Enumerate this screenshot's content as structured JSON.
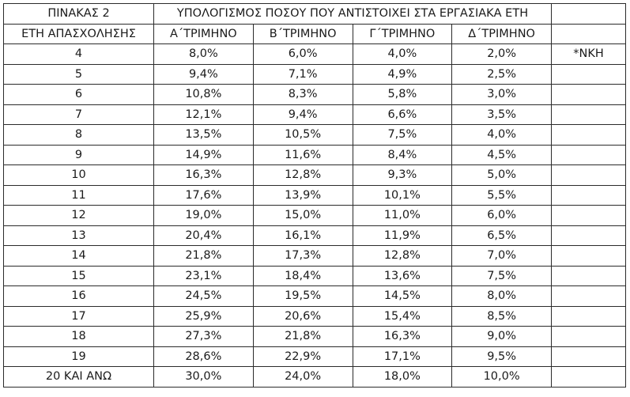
{
  "table": {
    "title_cell": "ΠΙΝΑΚΑΣ 2",
    "caption": "ΥΠΟΛΟΓΙΣΜΟΣ ΠΟΣΟΥ ΠΟΥ ΑΝΤΙΣΤΟΙΧΕΙ ΣΤΑ ΕΡΓΑΣΙΑΚΑ ΕΤΗ",
    "headers": [
      "ΕΤΗ ΑΠΑΣΧΟΛΗΣΗΣ",
      "Α΄ΤΡΙΜΗΝΟ",
      "Β΄ΤΡΙΜΗΝΟ",
      "Γ΄ΤΡΙΜΗΝΟ",
      "Δ΄ΤΡΙΜΗΝΟ",
      ""
    ],
    "note": "*ΝΚΗ",
    "rows": [
      [
        "4",
        "8,0%",
        "6,0%",
        "4,0%",
        "2,0%"
      ],
      [
        "5",
        "9,4%",
        "7,1%",
        "4,9%",
        "2,5%"
      ],
      [
        "6",
        "10,8%",
        "8,3%",
        "5,8%",
        "3,0%"
      ],
      [
        "7",
        "12,1%",
        "9,4%",
        "6,6%",
        "3,5%"
      ],
      [
        "8",
        "13,5%",
        "10,5%",
        "7,5%",
        "4,0%"
      ],
      [
        "9",
        "14,9%",
        "11,6%",
        "8,4%",
        "4,5%"
      ],
      [
        "10",
        "16,3%",
        "12,8%",
        "9,3%",
        "5,0%"
      ],
      [
        "11",
        "17,6%",
        "13,9%",
        "10,1%",
        "5,5%"
      ],
      [
        "12",
        "19,0%",
        "15,0%",
        "11,0%",
        "6,0%"
      ],
      [
        "13",
        "20,4%",
        "16,1%",
        "11,9%",
        "6,5%"
      ],
      [
        "14",
        "21,8%",
        "17,3%",
        "12,8%",
        "7,0%"
      ],
      [
        "15",
        "23,1%",
        "18,4%",
        "13,6%",
        "7,5%"
      ],
      [
        "16",
        "24,5%",
        "19,5%",
        "14,5%",
        "8,0%"
      ],
      [
        "17",
        "25,9%",
        "20,6%",
        "15,4%",
        "8,5%"
      ],
      [
        "18",
        "27,3%",
        "21,8%",
        "16,3%",
        "9,0%"
      ],
      [
        "19",
        "28,6%",
        "22,9%",
        "17,1%",
        "9,5%"
      ],
      [
        "20 ΚΑΙ ΑΝΩ",
        "30,0%",
        "24,0%",
        "18,0%",
        "10,0%"
      ]
    ]
  }
}
